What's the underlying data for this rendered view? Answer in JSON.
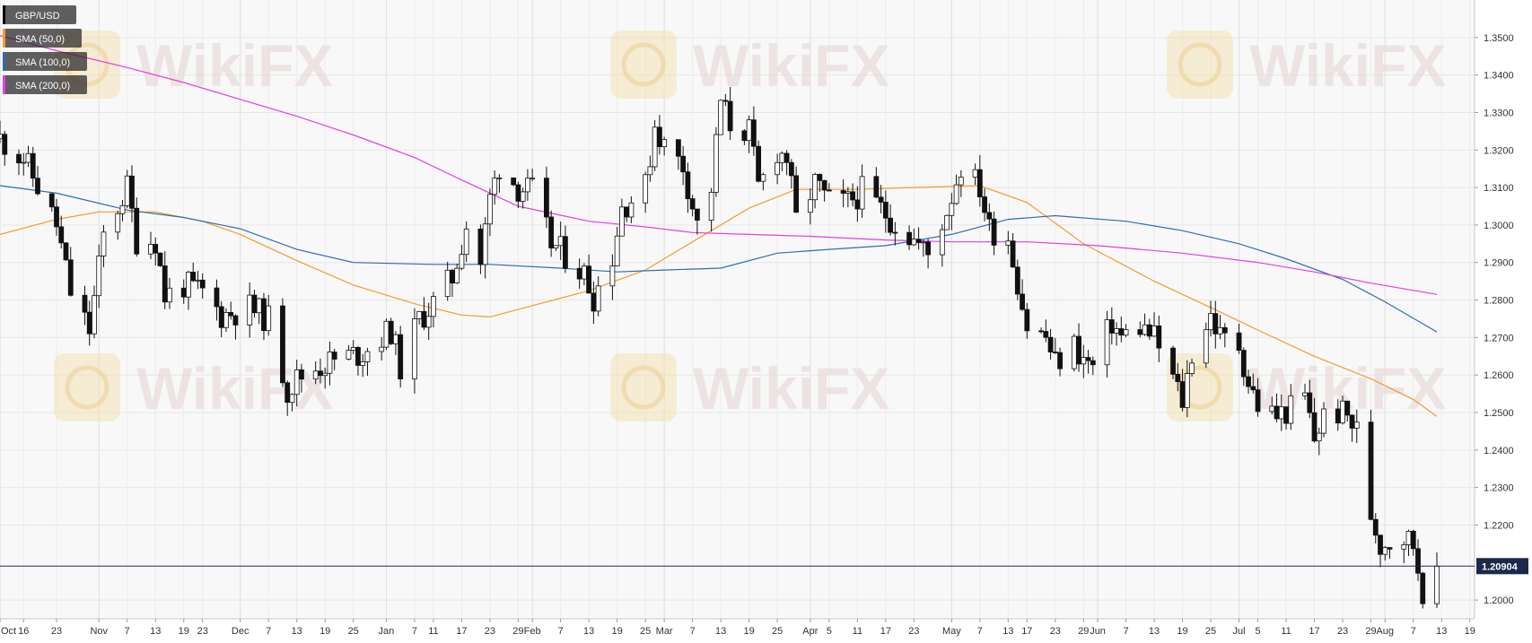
{
  "chart_data": {
    "type": "candlestick",
    "symbol": "GBP/USD",
    "legend": [
      {
        "label": "GBP/USD",
        "color": "#000000"
      },
      {
        "label": "SMA (50,0)",
        "color": "#f39c2c"
      },
      {
        "label": "SMA (100,0)",
        "color": "#2f6db0"
      },
      {
        "label": "SMA (200,0)",
        "color": "#e23ee2"
      }
    ],
    "legend_position": "top-left",
    "last_price_label": "1.20904",
    "last_price": 1.20904,
    "y_axis": {
      "min": 1.195,
      "max": 1.36,
      "ticks": [
        1.35,
        1.34,
        1.33,
        1.32,
        1.31,
        1.3,
        1.29,
        1.28,
        1.27,
        1.26,
        1.25,
        1.24,
        1.23,
        1.22,
        1.2
      ],
      "tick_labels": [
        "1.3500",
        "1.3400",
        "1.3300",
        "1.3200",
        "1.3100",
        "1.3000",
        "1.2900",
        "1.2800",
        "1.2700",
        "1.2600",
        "1.2500",
        "1.2400",
        "1.2300",
        "1.2200",
        "1.2000"
      ]
    },
    "x_axis": {
      "start": "2018-10-11",
      "end": "2019-08-20",
      "ticks": [
        {
          "label": "Oct",
          "date": "2018-10-11",
          "month": true
        },
        {
          "label": "16",
          "date": "2018-10-16"
        },
        {
          "label": "23",
          "date": "2018-10-23"
        },
        {
          "label": "Nov",
          "date": "2018-11-01",
          "month": true
        },
        {
          "label": "7",
          "date": "2018-11-07"
        },
        {
          "label": "13",
          "date": "2018-11-13"
        },
        {
          "label": "19",
          "date": "2018-11-19"
        },
        {
          "label": "23",
          "date": "2018-11-23"
        },
        {
          "label": "Dec",
          "date": "2018-12-01",
          "month": true
        },
        {
          "label": "7",
          "date": "2018-12-07"
        },
        {
          "label": "13",
          "date": "2018-12-13"
        },
        {
          "label": "19",
          "date": "2018-12-19"
        },
        {
          "label": "25",
          "date": "2018-12-25"
        },
        {
          "label": "Jan",
          "date": "2019-01-01",
          "month": true
        },
        {
          "label": "7",
          "date": "2019-01-07"
        },
        {
          "label": "11",
          "date": "2019-01-11"
        },
        {
          "label": "17",
          "date": "2019-01-17"
        },
        {
          "label": "23",
          "date": "2019-01-23"
        },
        {
          "label": "29",
          "date": "2019-01-29"
        },
        {
          "label": "Feb",
          "date": "2019-02-01",
          "month": true
        },
        {
          "label": "7",
          "date": "2019-02-07"
        },
        {
          "label": "13",
          "date": "2019-02-13"
        },
        {
          "label": "19",
          "date": "2019-02-19"
        },
        {
          "label": "25",
          "date": "2019-02-25"
        },
        {
          "label": "Mar",
          "date": "2019-03-01",
          "month": true
        },
        {
          "label": "7",
          "date": "2019-03-07"
        },
        {
          "label": "13",
          "date": "2019-03-13"
        },
        {
          "label": "19",
          "date": "2019-03-19"
        },
        {
          "label": "25",
          "date": "2019-03-25"
        },
        {
          "label": "Apr",
          "date": "2019-04-01",
          "month": true
        },
        {
          "label": "5",
          "date": "2019-04-05"
        },
        {
          "label": "11",
          "date": "2019-04-11"
        },
        {
          "label": "17",
          "date": "2019-04-17"
        },
        {
          "label": "23",
          "date": "2019-04-23"
        },
        {
          "label": "May",
          "date": "2019-05-01",
          "month": true
        },
        {
          "label": "7",
          "date": "2019-05-07"
        },
        {
          "label": "13",
          "date": "2019-05-13"
        },
        {
          "label": "17",
          "date": "2019-05-17"
        },
        {
          "label": "23",
          "date": "2019-05-23"
        },
        {
          "label": "29",
          "date": "2019-05-29"
        },
        {
          "label": "Jun",
          "date": "2019-06-01",
          "month": true
        },
        {
          "label": "7",
          "date": "2019-06-07"
        },
        {
          "label": "13",
          "date": "2019-06-13"
        },
        {
          "label": "19",
          "date": "2019-06-19"
        },
        {
          "label": "25",
          "date": "2019-06-25"
        },
        {
          "label": "Jul",
          "date": "2019-07-01",
          "month": true
        },
        {
          "label": "5",
          "date": "2019-07-05"
        },
        {
          "label": "11",
          "date": "2019-07-11"
        },
        {
          "label": "17",
          "date": "2019-07-17"
        },
        {
          "label": "23",
          "date": "2019-07-23"
        },
        {
          "label": "29",
          "date": "2019-07-29"
        },
        {
          "label": "Aug",
          "date": "2019-08-01",
          "month": true
        },
        {
          "label": "7",
          "date": "2019-08-07"
        },
        {
          "label": "13",
          "date": "2019-08-13"
        },
        {
          "label": "19",
          "date": "2019-08-19"
        }
      ]
    },
    "close_series": [
      {
        "date": "2018-10-11",
        "close": 1.323
      },
      {
        "date": "2018-10-16",
        "close": 1.318
      },
      {
        "date": "2018-10-23",
        "close": 1.3
      },
      {
        "date": "2018-10-26",
        "close": 1.282
      },
      {
        "date": "2018-10-30",
        "close": 1.272
      },
      {
        "date": "2018-11-02",
        "close": 1.297
      },
      {
        "date": "2018-11-07",
        "close": 1.31
      },
      {
        "date": "2018-11-09",
        "close": 1.296
      },
      {
        "date": "2018-11-13",
        "close": 1.296
      },
      {
        "date": "2018-11-15",
        "close": 1.281
      },
      {
        "date": "2018-11-19",
        "close": 1.284
      },
      {
        "date": "2018-11-23",
        "close": 1.282
      },
      {
        "date": "2018-11-27",
        "close": 1.276
      },
      {
        "date": "2018-12-03",
        "close": 1.278
      },
      {
        "date": "2018-12-07",
        "close": 1.275
      },
      {
        "date": "2018-12-11",
        "close": 1.256
      },
      {
        "date": "2018-12-13",
        "close": 1.259
      },
      {
        "date": "2018-12-17",
        "close": 1.262
      },
      {
        "date": "2018-12-21",
        "close": 1.264
      },
      {
        "date": "2018-12-27",
        "close": 1.266
      },
      {
        "date": "2019-01-02",
        "close": 1.272
      },
      {
        "date": "2019-01-04",
        "close": 1.262
      },
      {
        "date": "2019-01-08",
        "close": 1.275
      },
      {
        "date": "2019-01-11",
        "close": 1.279
      },
      {
        "date": "2019-01-15",
        "close": 1.286
      },
      {
        "date": "2019-01-18",
        "close": 1.3
      },
      {
        "date": "2019-01-21",
        "close": 1.29
      },
      {
        "date": "2019-01-23",
        "close": 1.307
      },
      {
        "date": "2019-01-25",
        "close": 1.316
      },
      {
        "date": "2019-01-29",
        "close": 1.31
      },
      {
        "date": "2019-02-01",
        "close": 1.309
      },
      {
        "date": "2019-02-05",
        "close": 1.295
      },
      {
        "date": "2019-02-08",
        "close": 1.292
      },
      {
        "date": "2019-02-12",
        "close": 1.287
      },
      {
        "date": "2019-02-14",
        "close": 1.281
      },
      {
        "date": "2019-02-18",
        "close": 1.292
      },
      {
        "date": "2019-02-20",
        "close": 1.305
      },
      {
        "date": "2019-02-25",
        "close": 1.31
      },
      {
        "date": "2019-02-27",
        "close": 1.327
      },
      {
        "date": "2019-03-01",
        "close": 1.321
      },
      {
        "date": "2019-03-05",
        "close": 1.316
      },
      {
        "date": "2019-03-08",
        "close": 1.3
      },
      {
        "date": "2019-03-11",
        "close": 1.31
      },
      {
        "date": "2019-03-13",
        "close": 1.333
      },
      {
        "date": "2019-03-15",
        "close": 1.327
      },
      {
        "date": "2019-03-19",
        "close": 1.325
      },
      {
        "date": "2019-03-21",
        "close": 1.31
      },
      {
        "date": "2019-03-25",
        "close": 1.32
      },
      {
        "date": "2019-03-27",
        "close": 1.318
      },
      {
        "date": "2019-03-29",
        "close": 1.301
      },
      {
        "date": "2019-04-02",
        "close": 1.311
      },
      {
        "date": "2019-04-05",
        "close": 1.306
      },
      {
        "date": "2019-04-09",
        "close": 1.306
      },
      {
        "date": "2019-04-12",
        "close": 1.309
      },
      {
        "date": "2019-04-17",
        "close": 1.303
      },
      {
        "date": "2019-04-23",
        "close": 1.296
      },
      {
        "date": "2019-04-26",
        "close": 1.292
      },
      {
        "date": "2019-04-30",
        "close": 1.304
      },
      {
        "date": "2019-05-03",
        "close": 1.316
      },
      {
        "date": "2019-05-07",
        "close": 1.31
      },
      {
        "date": "2019-05-09",
        "close": 1.299
      },
      {
        "date": "2019-05-13",
        "close": 1.297
      },
      {
        "date": "2019-05-15",
        "close": 1.285
      },
      {
        "date": "2019-05-17",
        "close": 1.273
      },
      {
        "date": "2019-05-21",
        "close": 1.27
      },
      {
        "date": "2019-05-23",
        "close": 1.263
      },
      {
        "date": "2019-05-27",
        "close": 1.268
      },
      {
        "date": "2019-05-29",
        "close": 1.264
      },
      {
        "date": "2019-05-31",
        "close": 1.262
      },
      {
        "date": "2019-06-04",
        "close": 1.274
      },
      {
        "date": "2019-06-06",
        "close": 1.27
      },
      {
        "date": "2019-06-10",
        "close": 1.273
      },
      {
        "date": "2019-06-13",
        "close": 1.27
      },
      {
        "date": "2019-06-17",
        "close": 1.259
      },
      {
        "date": "2019-06-19",
        "close": 1.253
      },
      {
        "date": "2019-06-21",
        "close": 1.266
      },
      {
        "date": "2019-06-25",
        "close": 1.276
      },
      {
        "date": "2019-06-27",
        "close": 1.27
      },
      {
        "date": "2019-07-01",
        "close": 1.268
      },
      {
        "date": "2019-07-03",
        "close": 1.258
      },
      {
        "date": "2019-07-05",
        "close": 1.252
      },
      {
        "date": "2019-07-09",
        "close": 1.249
      },
      {
        "date": "2019-07-12",
        "close": 1.251
      },
      {
        "date": "2019-07-15",
        "close": 1.254
      },
      {
        "date": "2019-07-17",
        "close": 1.243
      },
      {
        "date": "2019-07-19",
        "close": 1.249
      },
      {
        "date": "2019-07-22",
        "close": 1.25
      },
      {
        "date": "2019-07-24",
        "close": 1.249
      },
      {
        "date": "2019-07-26",
        "close": 1.245
      },
      {
        "date": "2019-07-29",
        "close": 1.223
      },
      {
        "date": "2019-07-31",
        "close": 1.215
      },
      {
        "date": "2019-08-02",
        "close": 1.216
      },
      {
        "date": "2019-08-05",
        "close": 1.217
      },
      {
        "date": "2019-08-07",
        "close": 1.215
      },
      {
        "date": "2019-08-09",
        "close": 1.203
      },
      {
        "date": "2019-08-12",
        "close": 1.209
      }
    ],
    "sma_series": [
      {
        "name": "SMA (50,0)",
        "color": "#f39c2c",
        "points": [
          [
            "2018-10-11",
            1.2975
          ],
          [
            "2018-10-23",
            1.3015
          ],
          [
            "2018-11-01",
            1.3035
          ],
          [
            "2018-11-13",
            1.3035
          ],
          [
            "2018-11-23",
            1.301
          ],
          [
            "2018-12-01",
            1.2975
          ],
          [
            "2018-12-13",
            1.2905
          ],
          [
            "2018-12-25",
            1.284
          ],
          [
            "2019-01-07",
            1.279
          ],
          [
            "2019-01-17",
            1.276
          ],
          [
            "2019-01-23",
            1.2755
          ],
          [
            "2019-02-01",
            1.2785
          ],
          [
            "2019-02-13",
            1.2825
          ],
          [
            "2019-02-25",
            1.288
          ],
          [
            "2019-03-07",
            1.2955
          ],
          [
            "2019-03-19",
            1.3045
          ],
          [
            "2019-03-29",
            1.3095
          ],
          [
            "2019-04-11",
            1.3095
          ],
          [
            "2019-04-23",
            1.31
          ],
          [
            "2019-05-07",
            1.3105
          ],
          [
            "2019-05-17",
            1.306
          ],
          [
            "2019-05-29",
            1.295
          ],
          [
            "2019-06-13",
            1.285
          ],
          [
            "2019-06-25",
            1.278
          ],
          [
            "2019-07-05",
            1.272
          ],
          [
            "2019-07-17",
            1.265
          ],
          [
            "2019-07-29",
            1.259
          ],
          [
            "2019-08-07",
            1.2535
          ],
          [
            "2019-08-12",
            1.249
          ]
        ]
      },
      {
        "name": "SMA (100,0)",
        "color": "#2f6db0",
        "points": [
          [
            "2018-10-11",
            1.3105
          ],
          [
            "2018-10-23",
            1.3085
          ],
          [
            "2018-11-07",
            1.304
          ],
          [
            "2018-11-19",
            1.302
          ],
          [
            "2018-12-01",
            1.299
          ],
          [
            "2018-12-13",
            1.2935
          ],
          [
            "2018-12-25",
            1.29
          ],
          [
            "2019-01-11",
            1.2895
          ],
          [
            "2019-01-23",
            1.2895
          ],
          [
            "2019-02-07",
            1.2885
          ],
          [
            "2019-02-19",
            1.2875
          ],
          [
            "2019-03-01",
            1.288
          ],
          [
            "2019-03-13",
            1.2885
          ],
          [
            "2019-03-25",
            1.2925
          ],
          [
            "2019-04-05",
            1.2935
          ],
          [
            "2019-04-17",
            1.2945
          ],
          [
            "2019-05-01",
            1.2975
          ],
          [
            "2019-05-13",
            1.3015
          ],
          [
            "2019-05-23",
            1.3025
          ],
          [
            "2019-06-07",
            1.301
          ],
          [
            "2019-06-19",
            1.2985
          ],
          [
            "2019-07-01",
            1.295
          ],
          [
            "2019-07-11",
            1.291
          ],
          [
            "2019-07-23",
            1.2855
          ],
          [
            "2019-08-01",
            1.2795
          ],
          [
            "2019-08-12",
            1.2715
          ]
        ]
      },
      {
        "name": "SMA (200,0)",
        "color": "#e23ee2",
        "points": [
          [
            "2018-10-11",
            1.3505
          ],
          [
            "2018-10-23",
            1.3465
          ],
          [
            "2018-11-07",
            1.342
          ],
          [
            "2018-11-19",
            1.338
          ],
          [
            "2018-12-01",
            1.3335
          ],
          [
            "2018-12-13",
            1.329
          ],
          [
            "2018-12-25",
            1.324
          ],
          [
            "2019-01-07",
            1.318
          ],
          [
            "2019-01-17",
            1.312
          ],
          [
            "2019-01-29",
            1.305
          ],
          [
            "2019-02-13",
            1.301
          ],
          [
            "2019-02-25",
            1.2995
          ],
          [
            "2019-03-07",
            1.298
          ],
          [
            "2019-03-19",
            1.2975
          ],
          [
            "2019-04-01",
            1.297
          ],
          [
            "2019-04-17",
            1.296
          ],
          [
            "2019-05-01",
            1.2955
          ],
          [
            "2019-05-17",
            1.2955
          ],
          [
            "2019-06-01",
            1.2945
          ],
          [
            "2019-06-19",
            1.2925
          ],
          [
            "2019-07-05",
            1.29
          ],
          [
            "2019-07-17",
            1.2875
          ],
          [
            "2019-07-29",
            1.2845
          ],
          [
            "2019-08-12",
            1.2815
          ]
        ]
      }
    ],
    "watermark": "WikiFX",
    "grid": true
  }
}
